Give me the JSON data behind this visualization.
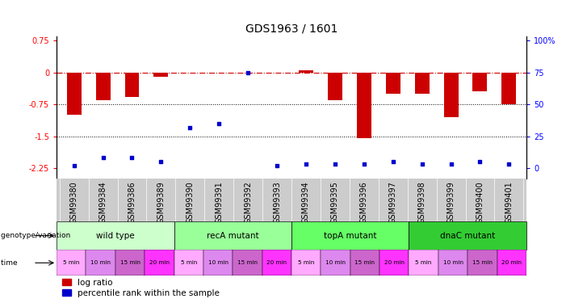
{
  "title": "GDS1963 / 1601",
  "samples": [
    "GSM99380",
    "GSM99384",
    "GSM99386",
    "GSM99389",
    "GSM99390",
    "GSM99391",
    "GSM99392",
    "GSM99393",
    "GSM99394",
    "GSM99395",
    "GSM99396",
    "GSM99397",
    "GSM99398",
    "GSM99399",
    "GSM99400",
    "GSM99401"
  ],
  "log_ratio": [
    -1.0,
    -0.65,
    -0.58,
    -0.1,
    0.0,
    0.0,
    0.0,
    0.0,
    0.05,
    -0.65,
    -1.55,
    -0.5,
    -0.5,
    -1.05,
    -0.45,
    -0.75
  ],
  "percentile": [
    2,
    8,
    8,
    5,
    32,
    35,
    75,
    2,
    3,
    3,
    3,
    5,
    3,
    3,
    5,
    3
  ],
  "ylim_left": [
    -2.5,
    0.85
  ],
  "yticks_left": [
    0.75,
    0,
    -0.75,
    -1.5,
    -2.25
  ],
  "yticks_right": [
    100,
    75,
    50,
    25,
    0
  ],
  "groups": [
    {
      "label": "wild type",
      "start": 0,
      "end": 4,
      "color": "#ccffcc"
    },
    {
      "label": "recA mutant",
      "start": 4,
      "end": 8,
      "color": "#99ff99"
    },
    {
      "label": "topA mutant",
      "start": 8,
      "end": 12,
      "color": "#66ff66"
    },
    {
      "label": "dnaC mutant",
      "start": 12,
      "end": 16,
      "color": "#33cc33"
    }
  ],
  "time_labels": [
    "5 min",
    "10 min",
    "15 min",
    "20 min",
    "5 min",
    "10 min",
    "15 min",
    "20 min",
    "5 min",
    "10 min",
    "15 min",
    "20 min",
    "5 min",
    "10 min",
    "15 min",
    "20 min"
  ],
  "time_colors": [
    "#ffaaff",
    "#dd88ee",
    "#cc66cc",
    "#ff33ff",
    "#ffaaff",
    "#dd88ee",
    "#cc66cc",
    "#ff33ff",
    "#ffaaff",
    "#dd88ee",
    "#cc66cc",
    "#ff33ff",
    "#ffaaff",
    "#dd88ee",
    "#cc66cc",
    "#ff33ff"
  ],
  "bar_color": "#cc0000",
  "dot_color": "#0000cc",
  "dashed_line_color": "#cc0000",
  "background_color": "#ffffff",
  "title_fontsize": 10,
  "label_fontsize": 7.5,
  "tick_fontsize": 7,
  "legend_fontsize": 7.5,
  "sample_bg_color": "#cccccc"
}
